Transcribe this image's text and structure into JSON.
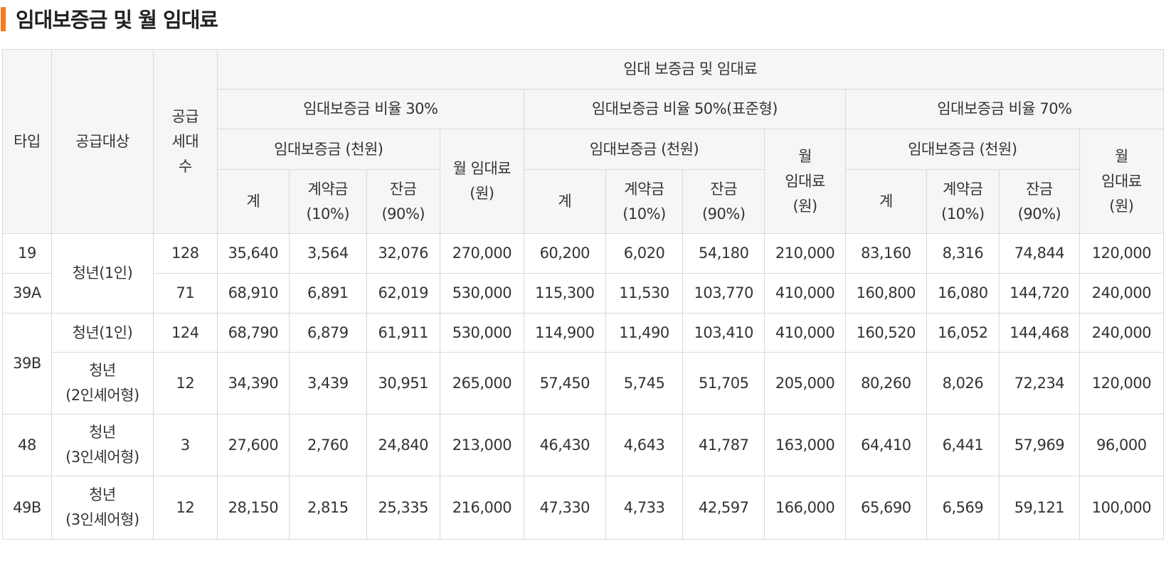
{
  "page": {
    "title": "임대보증금 및 월 임대료"
  },
  "colors": {
    "accent": "#f47a20",
    "header_bg": "#f6f6f6",
    "border": "#d9d9d9"
  },
  "table": {
    "headers": {
      "type": "타입",
      "target": "공급대상",
      "units": [
        "공급",
        "세대",
        "수"
      ],
      "group": "임대 보증금 및 임대료",
      "ratio30": "임대보증금 비율 30%",
      "ratio50": "임대보증금 비율 50%(표준형)",
      "ratio70": "임대보증금 비율 70%",
      "deposit": "임대보증금 (천원)",
      "rent30": [
        "월 임대료",
        "(원)"
      ],
      "rent50": [
        "월",
        "임대료",
        "(원)"
      ],
      "rent70": [
        "월",
        "임대료",
        "(원)"
      ],
      "total": "계",
      "contract": [
        "계약금",
        "(10%)"
      ],
      "balance": [
        "잔금",
        "(90%)"
      ]
    },
    "rows": [
      {
        "type": "19",
        "target": [
          "청년(1인)"
        ],
        "units": "128",
        "r30": [
          "35,640",
          "3,564",
          "32,076",
          "270,000"
        ],
        "r50": [
          "60,200",
          "6,020",
          "54,180",
          "210,000"
        ],
        "r70": [
          "83,160",
          "8,316",
          "74,844",
          "120,000"
        ]
      },
      {
        "type": "39A",
        "target": null,
        "units": "71",
        "r30": [
          "68,910",
          "6,891",
          "62,019",
          "530,000"
        ],
        "r50": [
          "115,300",
          "11,530",
          "103,770",
          "410,000"
        ],
        "r70": [
          "160,800",
          "16,080",
          "144,720",
          "240,000"
        ]
      },
      {
        "type": "39B",
        "target": [
          "청년(1인)"
        ],
        "units": "124",
        "r30": [
          "68,790",
          "6,879",
          "61,911",
          "530,000"
        ],
        "r50": [
          "114,900",
          "11,490",
          "103,410",
          "410,000"
        ],
        "r70": [
          "160,520",
          "16,052",
          "144,468",
          "240,000"
        ]
      },
      {
        "type": null,
        "target": [
          "청년",
          "(2인셰어형)"
        ],
        "units": "12",
        "r30": [
          "34,390",
          "3,439",
          "30,951",
          "265,000"
        ],
        "r50": [
          "57,450",
          "5,745",
          "51,705",
          "205,000"
        ],
        "r70": [
          "80,260",
          "8,026",
          "72,234",
          "120,000"
        ]
      },
      {
        "type": "48",
        "target": [
          "청년",
          "(3인셰어형)"
        ],
        "units": "3",
        "r30": [
          "27,600",
          "2,760",
          "24,840",
          "213,000"
        ],
        "r50": [
          "46,430",
          "4,643",
          "41,787",
          "163,000"
        ],
        "r70": [
          "64,410",
          "6,441",
          "57,969",
          "96,000"
        ]
      },
      {
        "type": "49B",
        "target": [
          "청년",
          "(3인셰어형)"
        ],
        "units": "12",
        "r30": [
          "28,150",
          "2,815",
          "25,335",
          "216,000"
        ],
        "r50": [
          "47,330",
          "4,733",
          "42,597",
          "166,000"
        ],
        "r70": [
          "65,690",
          "6,569",
          "59,121",
          "100,000"
        ]
      }
    ]
  }
}
